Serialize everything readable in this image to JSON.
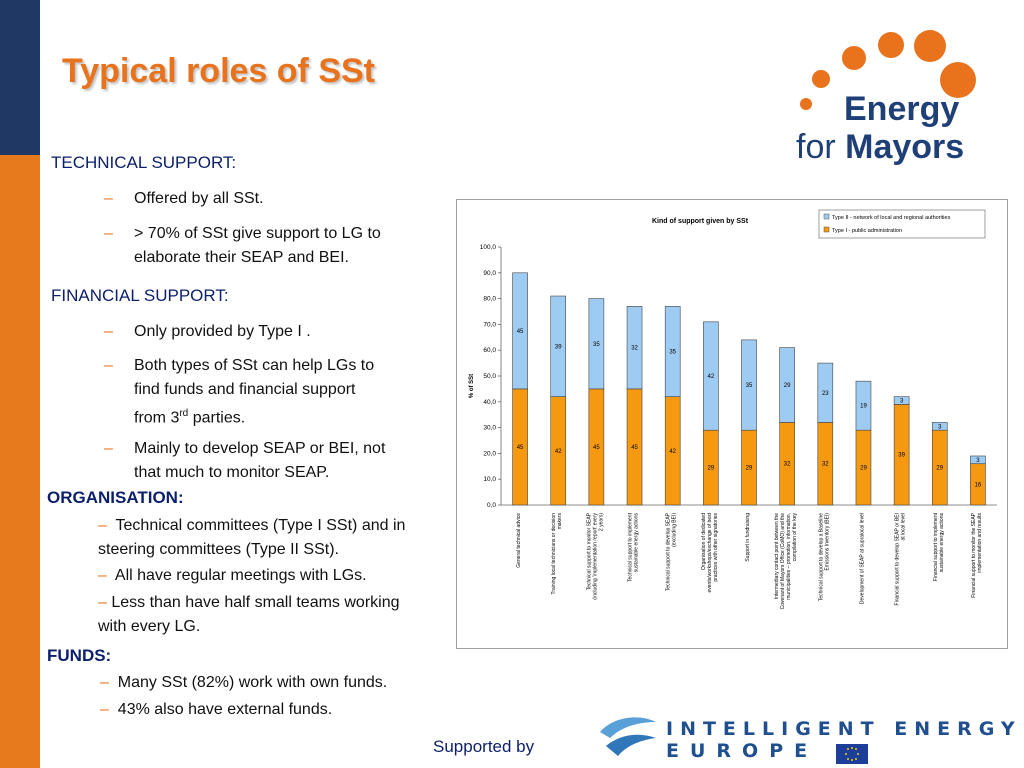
{
  "slide": {
    "title": "Typical roles of SSt",
    "logo": {
      "line1": "Energy",
      "line2_prefix": "for ",
      "line2_bold": "Mayors"
    },
    "technical": {
      "heading": "TECHNICAL SUPPORT:",
      "items": [
        "Offered by all SSt.",
        "> 70% of SSt give support to LG to",
        "elaborate their SEAP and BEI."
      ]
    },
    "financial": {
      "heading": "FINANCIAL SUPPORT:",
      "items": [
        "Only provided by Type I .",
        "Both types of SSt can help LGs to",
        "find funds and financial support",
        "from 3",
        "rd",
        " parties.",
        "Mainly to develop SEAP or BEI, not",
        "that much to monitor SEAP."
      ]
    },
    "organisation": {
      "heading": "ORGANISATION:",
      "items": [
        "Technical committees (Type I SSt) and in",
        "steering committees (Type II SSt).",
        "All have regular meetings with LGs.",
        "Less than have half small teams working",
        "with every LG."
      ]
    },
    "funds": {
      "heading": "FUNDS:",
      "items": [
        "Many SSt  (82%) work with own funds.",
        "43% also have external funds."
      ]
    },
    "dash": "–",
    "supported_by": "Supported by",
    "iee": {
      "line1": "INTELLIGENT ENERGY",
      "line2": "EUROPE"
    }
  },
  "colors": {
    "orange": "#e8731c",
    "navy": "#1f3864",
    "type1": "#f59a10",
    "type2": "#9ecbf2"
  },
  "chart_data": {
    "type": "bar",
    "stacked": true,
    "title": "Kind of support given by SSt",
    "ylabel": "% of SSt",
    "ylim": [
      0,
      100
    ],
    "yticks": [
      "0,0",
      "10,0",
      "20,0",
      "30,0",
      "40,0",
      "50,0",
      "60,0",
      "70,0",
      "80,0",
      "90,0",
      "100,0"
    ],
    "legend_position": "top-right",
    "categories": [
      "General technical advice",
      "Training local technicians or decision makers",
      "Technical support to monitor SEAP (including 'implementation report' every 2 years)",
      "Technical support to implement sustainable energy actions",
      "Technical support to develop SEAP (excluding BEI)",
      "Organisation of dedicated events/workshops/exchange of best practices with other signatories",
      "Support in fundraising",
      "Intermediary contact point between the Covenant of Mayors Office (CoMO) and the municipalities – promotion, information, compilation of the key",
      "Technical support to develop a Baseline Emissions Inventory (BEI)",
      "Development of SEAP at supralocal level",
      "Financial support to develop SEAP or BEI at local level",
      "Financial support to implement sustainable energy actions",
      "Financial support to monitor the SEAP implementation and results"
    ],
    "series": [
      {
        "name": "Type I - public administration",
        "values": [
          45,
          42,
          45,
          45,
          42,
          29,
          29,
          32,
          32,
          29,
          39,
          29,
          16
        ]
      },
      {
        "name": "Type II - network of local and regional authorities",
        "values": [
          45,
          39,
          35,
          32,
          35,
          42,
          35,
          29,
          23,
          19,
          3,
          3,
          3
        ]
      }
    ]
  }
}
